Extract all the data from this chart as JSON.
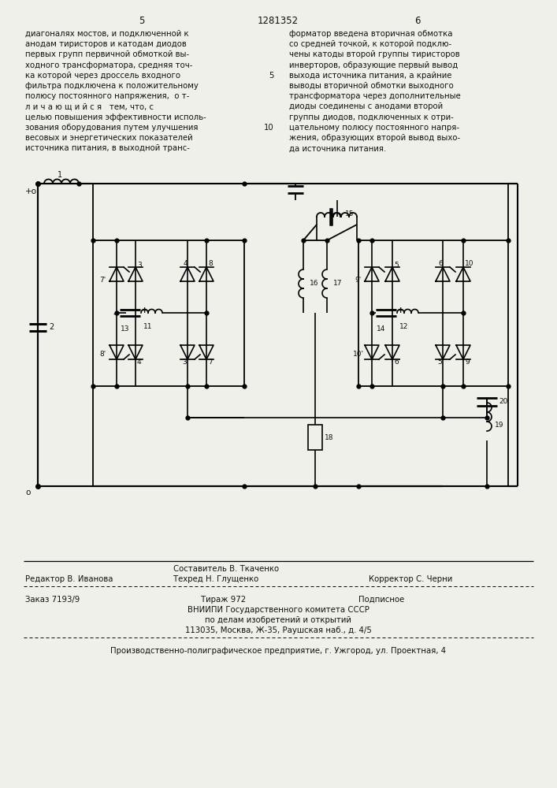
{
  "page_numbers": [
    "5",
    "6"
  ],
  "patent_number": "1281352",
  "left_text": [
    "диагоналях мостов, и подключенной к",
    "анодам тиристоров и катодам диодов",
    "первых групп первичной обмоткой вы-",
    "ходного трансформатора, средняя точ-",
    "ка которой через дроссель входного",
    "фильтра подключена к положительному",
    "полюсу постоянного напряжения,  о т-",
    "л и ч а ю щ и й с я   тем, что, с",
    "целью повышения эффективности исполь-",
    "зования оборудования путем улучшения",
    "весовых и энергетических показателей",
    "источника питания, в выходной транс-"
  ],
  "right_text": [
    "форматор введена вторичная обмотка",
    "со средней точкой, к которой подклю-",
    "чены катоды второй группы тиристоров",
    "инверторов, образующие первый вывод",
    "выхода источника питания, а крайние",
    "выводы вторичной обмотки выходного",
    "трансформатора через дополнительные",
    "диоды соединены с анодами второй",
    "группы диодов, подключенных к отри-",
    "цательному полюсу постоянного напря-",
    "жения, образующих второй вывод выхо-",
    "да источника питания."
  ],
  "footer_line1_left": "Редактор В. Иванова",
  "footer_line1_center": "Составитель В. Ткаченко",
  "footer_line2_center": "Техред Н. Глущенко",
  "footer_line2_right": "Корректор С. Черни",
  "footer_zakaz": "Заказ 7193/9",
  "footer_tirazh": "Тираж 972",
  "footer_podpisnoe": "Подписное",
  "footer_vniipи": "ВНИИПИ Государственного комитета СССР",
  "footer_po_delam": "по делам изобретений и открытий",
  "footer_address": "113035, Москва, Ж-35, Раушская наб., д. 4/5",
  "footer_factory": "Производственно-полиграфическое предприятие, г. Ужгород, ул. Проектная, 4",
  "bg_color": "#f0f0ea"
}
